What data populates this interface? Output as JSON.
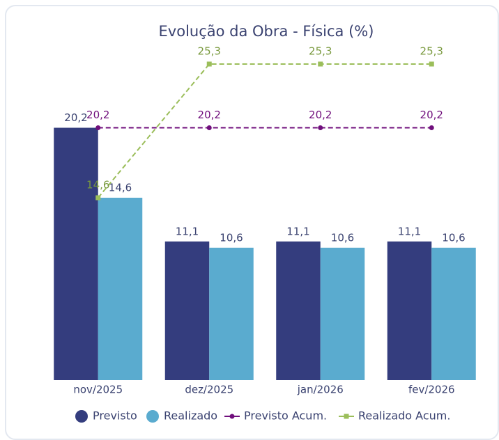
{
  "chart_data": {
    "type": "bar",
    "title": "Evolução da Obra - Física (%)",
    "categories": [
      "nov/2025",
      "dez/2025",
      "jan/2026",
      "fev/2026"
    ],
    "series": [
      {
        "name": "Previsto",
        "type": "bar",
        "color": "#343d7e",
        "values": [
          20.2,
          11.1,
          11.1,
          11.1
        ],
        "value_labels": [
          "20,2",
          "11,1",
          "11,1",
          "11,1"
        ]
      },
      {
        "name": "Realizado",
        "type": "bar",
        "color": "#5aabcf",
        "values": [
          14.6,
          10.6,
          10.6,
          10.6
        ],
        "value_labels": [
          "14,6",
          "10,6",
          "10,6",
          "10,6"
        ]
      },
      {
        "name": "Previsto Acum.",
        "type": "line",
        "color": "#700f7c",
        "values": [
          20.2,
          20.2,
          20.2,
          20.2
        ],
        "value_labels": [
          "20,2",
          "20,2",
          "20,2",
          "20,2"
        ]
      },
      {
        "name": "Realizado Acum.",
        "type": "line",
        "color": "#9bbe5a",
        "values": [
          14.6,
          25.3,
          25.3,
          25.3
        ],
        "value_labels": [
          "14,6",
          "25,3",
          "25,3",
          "25,3"
        ]
      }
    ]
  }
}
